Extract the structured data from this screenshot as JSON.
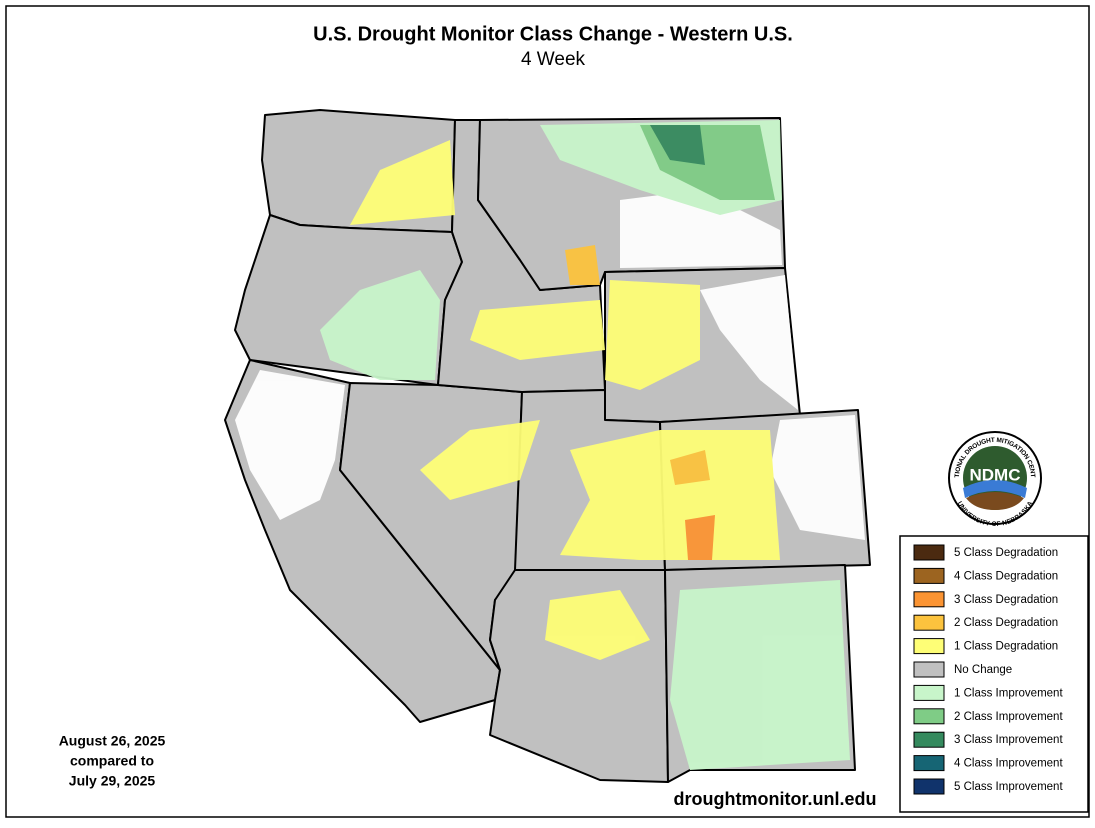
{
  "header": {
    "title": "U.S. Drought Monitor Class Change - Western U.S.",
    "subtitle": "4 Week"
  },
  "dates": [
    "August 26, 2025",
    "compared to",
    "July 29, 2025"
  ],
  "source": "droughtmonitor.unl.edu",
  "logo": {
    "acronym": "NDMC",
    "top": "NATIONAL DROUGHT MITIGATION CENTER",
    "bottom": "UNIVERSITY OF NEBRASKA"
  },
  "legend": [
    {
      "label": "5 Class Degradation",
      "color": "#4b2a10"
    },
    {
      "label": "4 Class Degradation",
      "color": "#9c6420"
    },
    {
      "label": "3 Class Degradation",
      "color": "#fb9433"
    },
    {
      "label": "2 Class Degradation",
      "color": "#fcc33e"
    },
    {
      "label": "1 Class Degradation",
      "color": "#fefe76"
    },
    {
      "label": "No Change",
      "color": "#c0c0c0"
    },
    {
      "label": "1 Class Improvement",
      "color": "#c8f5ca"
    },
    {
      "label": "2 Class Improvement",
      "color": "#7fcc86"
    },
    {
      "label": "3 Class Improvement",
      "color": "#358a5e"
    },
    {
      "label": "4 Class Improvement",
      "color": "#166574"
    },
    {
      "label": "5 Class Improvement",
      "color": "#10336b"
    }
  ]
}
